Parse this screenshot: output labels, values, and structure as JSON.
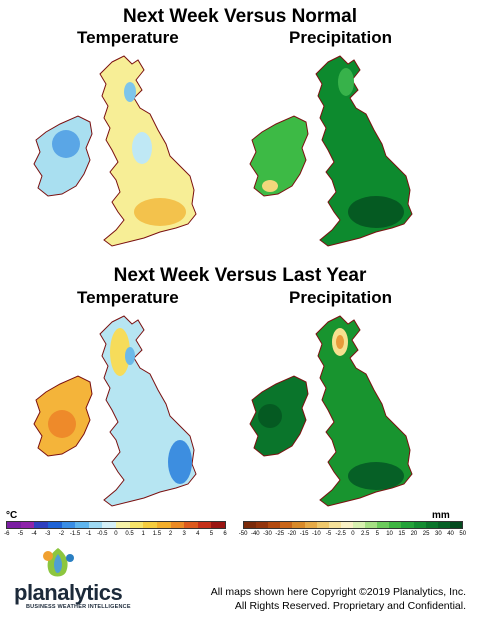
{
  "header": {
    "title_top": "Next Week Versus Normal",
    "title_bottom": "Next Week Versus Last Year",
    "temperature_label": "Temperature",
    "precipitation_label": "Precipitation"
  },
  "maps": [
    {
      "id": "normal-temperature",
      "fill": "#f7ee96",
      "accent": "#a9dff0"
    },
    {
      "id": "normal-precipitation",
      "fill": "#0d8a2e",
      "accent": "#3dba45"
    },
    {
      "id": "lastyear-temperature",
      "fill": "#b6e5f2",
      "accent": "#f4b43a"
    },
    {
      "id": "lastyear-precipitation",
      "fill": "#18942f",
      "accent": "#f6e08f"
    }
  ],
  "temperature_legend": {
    "unit": "°C",
    "ticks": [
      "-6",
      "-5",
      "-4",
      "-3",
      "-2",
      "-1.5",
      "-1",
      "-0.5",
      "0",
      "0.5",
      "1",
      "1.5",
      "2",
      "3",
      "4",
      "5",
      "6"
    ],
    "colors": [
      "#7b1fa2",
      "#8e24aa",
      "#2e3fbf",
      "#1e63d6",
      "#3a8ee6",
      "#5fb5ee",
      "#9ed9f3",
      "#d4f0f8",
      "#f6f3a8",
      "#f7e46a",
      "#f6cd3e",
      "#f2ae2c",
      "#eb8a24",
      "#dc5a1e",
      "#c4301a",
      "#9a1512"
    ]
  },
  "precipitation_legend": {
    "unit": "mm",
    "ticks": [
      "-50",
      "-40",
      "-30",
      "-25",
      "-20",
      "-15",
      "-10",
      "-5",
      "-2.5",
      "0",
      "2.5",
      "5",
      "10",
      "15",
      "20",
      "25",
      "30",
      "40",
      "50"
    ],
    "colors": [
      "#7a2a0a",
      "#93340c",
      "#b34a10",
      "#c9661a",
      "#d98a2a",
      "#e6aa48",
      "#efc86c",
      "#f5e09a",
      "#f9f0c6",
      "#d8f0b0",
      "#a6df84",
      "#6ccb5c",
      "#3fb543",
      "#24a23a",
      "#148c32",
      "#0a752b",
      "#066026",
      "#044a1f"
    ]
  },
  "footer": {
    "logo_name": "planalytics",
    "logo_tagline": "BUSINESS WEATHER INTELLIGENCE",
    "copyright_line1": "All maps shown here Copyright ©2019 Planalytics, Inc.",
    "copyright_line2": "All Rights Reserved. Proprietary and Confidential."
  }
}
